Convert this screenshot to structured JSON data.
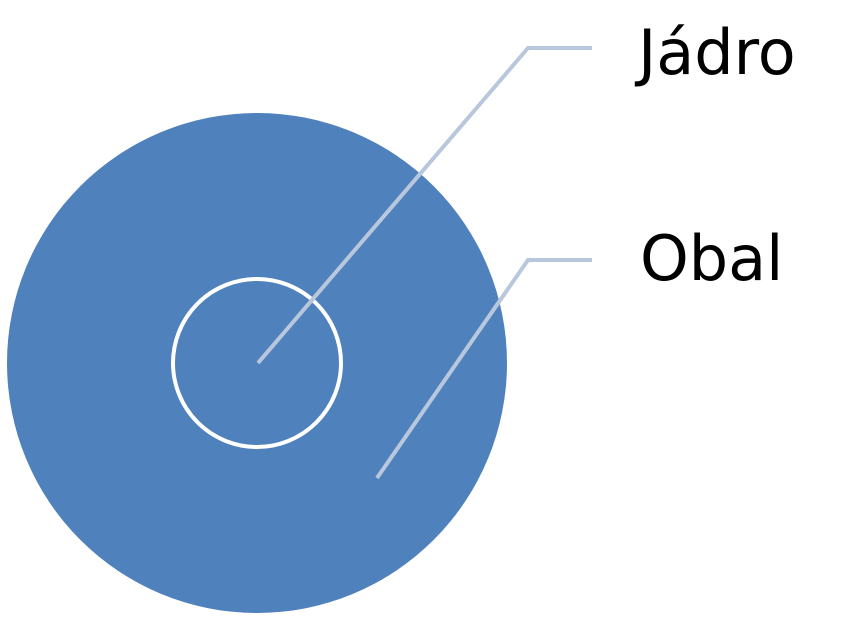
{
  "diagram": {
    "labels": {
      "core": "Jádro",
      "shell": "Obal"
    },
    "colors": {
      "outer_circle_fill": "#4f81bd",
      "inner_circle_stroke": "#ffffff",
      "leader_lines": "#b9c7dd",
      "label_text": "#000000",
      "background": "#ffffff"
    }
  }
}
